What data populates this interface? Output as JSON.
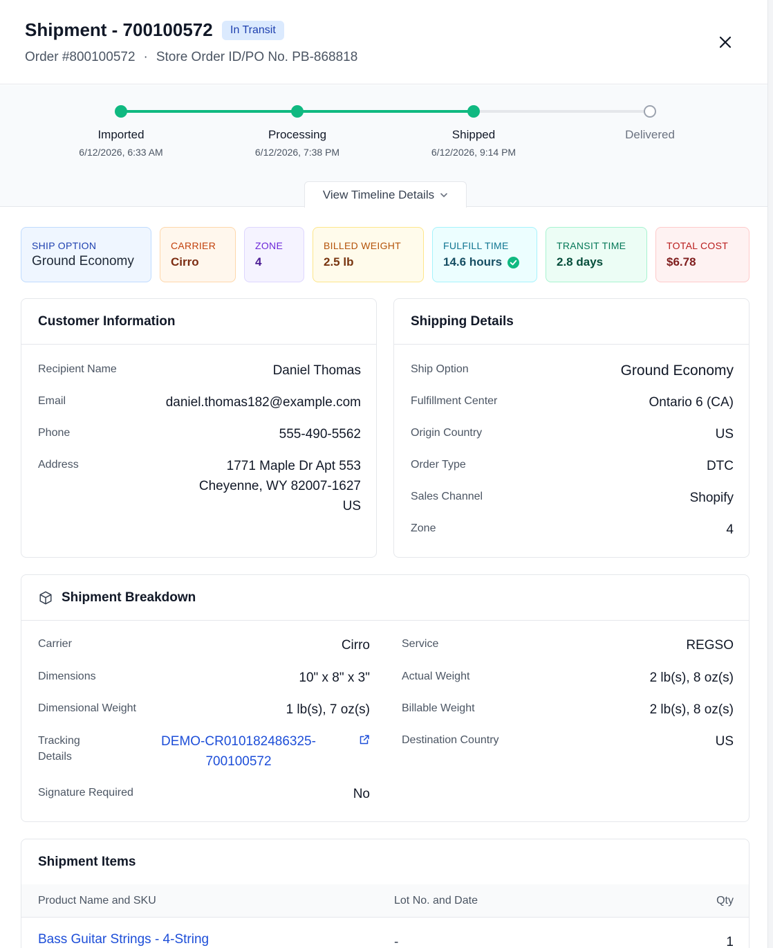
{
  "header": {
    "title": "Shipment - 700100572",
    "status": "In Transit",
    "order": "Order #800100572",
    "separator": "·",
    "store_order": "Store Order ID/PO No. PB-868818",
    "close_icon": "close-icon"
  },
  "timeline": {
    "steps": [
      {
        "label": "Imported",
        "date": "6/12/2026, 6:33 AM",
        "done": true
      },
      {
        "label": "Processing",
        "date": "6/12/2026, 7:38 PM",
        "done": true
      },
      {
        "label": "Shipped",
        "date": "6/12/2026, 9:14 PM",
        "done": true
      },
      {
        "label": "Delivered",
        "date": "",
        "done": false
      }
    ],
    "details_button": "View Timeline Details",
    "details_icon": "chevron-down-icon",
    "done_color": "#10b981",
    "pending_color": "#e5e7eb"
  },
  "metrics": [
    {
      "label": "SHIP OPTION",
      "value": "Ground Economy",
      "bg": "#eff6ff",
      "border": "#bfdbfe",
      "label_color": "#1e40af",
      "value_color": "#1f2937"
    },
    {
      "label": "CARRIER",
      "value": "Cirro",
      "bg": "#fff7ed",
      "border": "#fed7aa",
      "label_color": "#c2410c",
      "value_color": "#7c2d12"
    },
    {
      "label": "ZONE",
      "value": "4",
      "bg": "#f5f3ff",
      "border": "#ddd6fe",
      "label_color": "#6d28d9",
      "value_color": "#4c1d95"
    },
    {
      "label": "BILLED WEIGHT",
      "value": "2.5 lb",
      "bg": "#fffbeb",
      "border": "#fde68a",
      "label_color": "#b45309",
      "value_color": "#78350f"
    },
    {
      "label": "FULFILL TIME",
      "value": "14.6 hours",
      "bg": "#ecfeff",
      "border": "#a5f3fc",
      "label_color": "#0e7490",
      "value_color": "#164e63",
      "icon": "check-circle-icon"
    },
    {
      "label": "TRANSIT TIME",
      "value": "2.8 days",
      "bg": "#ecfdf5",
      "border": "#a7f3d0",
      "label_color": "#047857",
      "value_color": "#064e3b"
    },
    {
      "label": "TOTAL COST",
      "value": "$6.78",
      "bg": "#fef2f2",
      "border": "#fecaca",
      "label_color": "#b91c1c",
      "value_color": "#7f1d1d"
    }
  ],
  "customer": {
    "title": "Customer Information",
    "recipient_label": "Recipient Name",
    "recipient": "Daniel Thomas",
    "email_label": "Email",
    "email": "daniel.thomas182@example.com",
    "phone_label": "Phone",
    "phone": "555-490-5562",
    "address_label": "Address",
    "address_line1": "1771 Maple Dr Apt 553",
    "address_line2": "Cheyenne, WY 82007-1627",
    "address_line3": "US"
  },
  "shipping": {
    "title": "Shipping Details",
    "ship_option_label": "Ship Option",
    "ship_option": "Ground Economy",
    "fc_label": "Fulfillment Center",
    "fc": "Ontario 6 (CA)",
    "origin_label": "Origin Country",
    "origin": "US",
    "order_type_label": "Order Type",
    "order_type": "DTC",
    "channel_label": "Sales Channel",
    "channel": "Shopify",
    "zone_label": "Zone",
    "zone": "4"
  },
  "breakdown": {
    "title": "Shipment Breakdown",
    "icon": "package-icon",
    "carrier_label": "Carrier",
    "carrier": "Cirro",
    "dimensions_label": "Dimensions",
    "dimensions": "10\" x 8\" x 3\"",
    "dim_weight_label": "Dimensional Weight",
    "dim_weight": "1 lb(s), 7 oz(s)",
    "tracking_label_1": "Tracking",
    "tracking_label_2": "Details",
    "tracking_1": "DEMO-CR010182486325-",
    "tracking_2": "700100572",
    "tracking_icon": "external-link-icon",
    "signature_label": "Signature Required",
    "signature": "No",
    "service_label": "Service",
    "service": "REGSO",
    "actual_weight_label": "Actual Weight",
    "actual_weight": "2 lb(s), 8 oz(s)",
    "billable_weight_label": "Billable Weight",
    "billable_weight": "2 lb(s), 8 oz(s)",
    "dest_label": "Destination Country",
    "dest": "US"
  },
  "items": {
    "title": "Shipment Items",
    "columns": [
      "Product Name and SKU",
      "Lot No. and Date",
      "Qty"
    ],
    "rows": [
      {
        "product": "Bass Guitar Strings - 4-String",
        "lot": "-",
        "qty": "1"
      }
    ]
  }
}
